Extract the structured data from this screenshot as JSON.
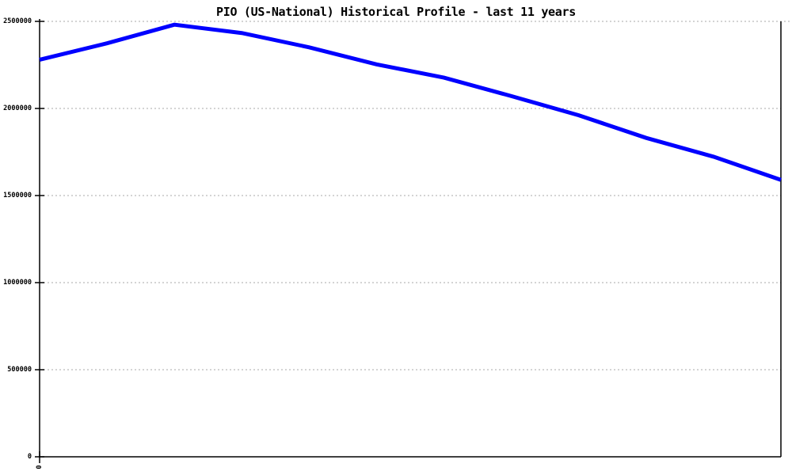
{
  "chart_data": {
    "type": "line",
    "title": "PIO (US-National) Historical Profile - last 11 years",
    "xlabel": "",
    "ylabel": "",
    "x": [
      0,
      1,
      2,
      3,
      4,
      5,
      6,
      7,
      8,
      9,
      10,
      11
    ],
    "values": [
      2280000,
      2374000,
      2481000,
      2433000,
      2351000,
      2253000,
      2177000,
      2071000,
      1961000,
      1831000,
      1723000,
      1590000
    ],
    "ylim": [
      0,
      2500000
    ],
    "y_ticks": [
      0,
      500000,
      1000000,
      1500000,
      2000000,
      2500000
    ],
    "y_tick_labels": [
      "0",
      "500000",
      "1000000",
      "1500000",
      "2000000",
      "2500000"
    ],
    "x_first_tick_label": "0",
    "line_color": "#0000ff",
    "grid_color": "#aaaaaa",
    "axis_color": "#000000",
    "text_color": "#000000",
    "background_color": "#ffffff",
    "grid": "horizontal-dotted",
    "legend": "none"
  }
}
